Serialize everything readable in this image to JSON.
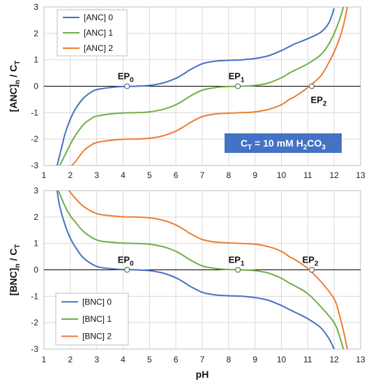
{
  "chart_data": [
    {
      "type": "line",
      "ylabel": "[ANC]n / CT",
      "ylabel_parts": {
        "main": "[ANC]",
        "sub": "n",
        "mid": " / C",
        "sub2": "T"
      },
      "xlim": [
        1,
        13
      ],
      "ylim": [
        -3,
        3
      ],
      "xticks": [
        1,
        2,
        3,
        4,
        5,
        6,
        7,
        8,
        9,
        10,
        11,
        12,
        13
      ],
      "yticks": [
        -3,
        -2,
        -1,
        0,
        1,
        2,
        3
      ],
      "grid": true,
      "legend_position": "top-left",
      "series": [
        {
          "name": "[ANC] 0",
          "color": "#4472C4",
          "x": [
            1.5,
            1.6,
            1.7,
            1.8,
            2.0,
            2.2,
            2.5,
            2.8,
            3.0,
            3.5,
            4.0,
            4.5,
            5.0,
            5.5,
            6.0,
            6.35,
            6.5,
            7.0,
            7.5,
            8.0,
            8.5,
            9.0,
            9.5,
            10.0,
            10.3,
            10.5,
            11.0,
            11.5,
            11.8,
            12.0
          ],
          "y": [
            -3.0,
            -2.6,
            -2.2,
            -1.8,
            -1.25,
            -0.85,
            -0.45,
            -0.22,
            -0.13,
            -0.05,
            -0.01,
            0.0,
            0.03,
            0.12,
            0.3,
            0.5,
            0.6,
            0.85,
            0.95,
            0.98,
            1.0,
            1.05,
            1.15,
            1.35,
            1.5,
            1.6,
            1.8,
            2.05,
            2.4,
            2.95
          ]
        },
        {
          "name": "[ANC] 1",
          "color": "#70AD47",
          "x": [
            1.6,
            1.8,
            2.0,
            2.2,
            2.5,
            2.8,
            3.0,
            3.5,
            4.0,
            4.5,
            5.0,
            5.5,
            6.0,
            6.35,
            6.5,
            7.0,
            7.5,
            8.0,
            8.5,
            9.0,
            9.5,
            10.0,
            10.3,
            10.5,
            11.0,
            11.5,
            11.8,
            12.0,
            12.2,
            12.35
          ],
          "y": [
            -3.0,
            -2.6,
            -2.2,
            -1.85,
            -1.45,
            -1.22,
            -1.13,
            -1.05,
            -1.01,
            -1.0,
            -0.97,
            -0.88,
            -0.7,
            -0.5,
            -0.4,
            -0.15,
            -0.05,
            -0.01,
            0.0,
            0.03,
            0.12,
            0.32,
            0.5,
            0.6,
            0.85,
            1.2,
            1.6,
            2.0,
            2.5,
            3.0
          ]
        },
        {
          "name": "[ANC] 2",
          "color": "#ED7D31",
          "x": [
            2.05,
            2.2,
            2.5,
            2.8,
            3.0,
            3.5,
            4.0,
            4.5,
            5.0,
            5.5,
            6.0,
            6.35,
            6.5,
            7.0,
            7.5,
            8.0,
            8.5,
            9.0,
            9.5,
            10.0,
            10.3,
            10.5,
            11.0,
            11.5,
            11.8,
            12.0,
            12.2,
            12.35,
            12.5
          ],
          "y": [
            -3.0,
            -2.85,
            -2.45,
            -2.22,
            -2.13,
            -2.05,
            -2.01,
            -2.0,
            -1.97,
            -1.88,
            -1.7,
            -1.5,
            -1.4,
            -1.15,
            -1.05,
            -1.02,
            -1.0,
            -0.97,
            -0.88,
            -0.7,
            -0.5,
            -0.4,
            -0.05,
            0.4,
            0.9,
            1.3,
            1.8,
            2.3,
            3.0
          ]
        }
      ],
      "equivalence_points": [
        {
          "label": "EP",
          "sub": "0",
          "x": 4.15,
          "y": 0,
          "label_position": "above"
        },
        {
          "label": "EP",
          "sub": "1",
          "x": 8.35,
          "y": 0,
          "label_position": "above"
        },
        {
          "label": "EP",
          "sub": "2",
          "x": 11.15,
          "y": 0,
          "label_position": "below"
        }
      ],
      "annotation": {
        "main": "C",
        "sub": "T",
        "rest": " = 10 mM  H",
        "sub2": "2",
        "rest2": "CO",
        "sub3": "3",
        "bg_color": "#4472C4",
        "text_color": "#ffffff"
      }
    },
    {
      "type": "line",
      "xlabel": "pH",
      "ylabel": "[BNC]n / CT",
      "ylabel_parts": {
        "main": "[BNC]",
        "sub": "n",
        "mid": " / C",
        "sub2": "T"
      },
      "xlim": [
        1,
        13
      ],
      "ylim": [
        -3,
        3
      ],
      "xticks": [
        1,
        2,
        3,
        4,
        5,
        6,
        7,
        8,
        9,
        10,
        11,
        12,
        13
      ],
      "yticks": [
        -3,
        -2,
        -1,
        0,
        1,
        2,
        3
      ],
      "grid": true,
      "legend_position": "bottom-left",
      "series": [
        {
          "name": "[BNC] 0",
          "color": "#4472C4",
          "x": [
            1.5,
            1.6,
            1.8,
            2.0,
            2.2,
            2.5,
            3.0,
            3.5,
            4.0,
            4.5,
            5.0,
            5.5,
            6.0,
            6.35,
            6.5,
            7.0,
            7.5,
            8.0,
            8.5,
            9.0,
            9.5,
            10.0,
            10.3,
            10.5,
            11.0,
            11.5,
            11.8,
            12.0
          ],
          "y": [
            3.0,
            2.4,
            1.7,
            1.2,
            0.85,
            0.45,
            0.13,
            0.05,
            0.01,
            0.0,
            -0.03,
            -0.12,
            -0.3,
            -0.5,
            -0.6,
            -0.85,
            -0.95,
            -0.98,
            -1.0,
            -1.05,
            -1.15,
            -1.35,
            -1.5,
            -1.6,
            -1.85,
            -2.2,
            -2.6,
            -3.0
          ]
        },
        {
          "name": "[BNC] 1",
          "color": "#70AD47",
          "x": [
            1.55,
            1.8,
            2.0,
            2.2,
            2.5,
            3.0,
            3.5,
            4.0,
            4.5,
            5.0,
            5.5,
            6.0,
            6.35,
            6.5,
            7.0,
            7.5,
            8.0,
            8.5,
            9.0,
            9.5,
            10.0,
            10.3,
            10.5,
            11.0,
            11.5,
            12.0,
            12.2,
            12.35
          ],
          "y": [
            3.0,
            2.4,
            2.05,
            1.8,
            1.45,
            1.13,
            1.05,
            1.01,
            1.0,
            0.97,
            0.88,
            0.7,
            0.5,
            0.4,
            0.15,
            0.05,
            0.01,
            0.0,
            -0.03,
            -0.12,
            -0.32,
            -0.5,
            -0.6,
            -0.9,
            -1.4,
            -2.0,
            -2.5,
            -3.0
          ]
        },
        {
          "name": "[BNC] 2",
          "color": "#ED7D31",
          "x": [
            1.95,
            2.2,
            2.5,
            3.0,
            3.5,
            4.0,
            4.5,
            5.0,
            5.5,
            6.0,
            6.35,
            6.5,
            7.0,
            7.5,
            8.0,
            8.5,
            9.0,
            9.5,
            10.0,
            10.3,
            10.5,
            11.0,
            11.5,
            12.0,
            12.2,
            12.35,
            12.5
          ],
          "y": [
            3.0,
            2.7,
            2.4,
            2.13,
            2.05,
            2.01,
            2.0,
            1.97,
            1.88,
            1.7,
            1.5,
            1.4,
            1.15,
            1.05,
            1.02,
            1.0,
            0.97,
            0.88,
            0.7,
            0.5,
            0.4,
            0.05,
            -0.45,
            -1.1,
            -1.7,
            -2.3,
            -3.0
          ]
        }
      ],
      "equivalence_points": [
        {
          "label": "EP",
          "sub": "0",
          "x": 4.15,
          "y": 0,
          "label_position": "above"
        },
        {
          "label": "EP",
          "sub": "1",
          "x": 8.35,
          "y": 0,
          "label_position": "above"
        },
        {
          "label": "EP",
          "sub": "2",
          "x": 11.15,
          "y": 0,
          "label_position": "above"
        }
      ]
    }
  ]
}
